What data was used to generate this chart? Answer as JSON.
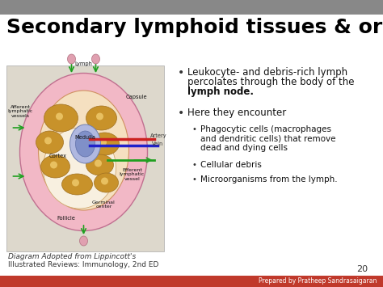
{
  "title": "Secondary lymphoid tissues & organs",
  "title_fontsize": 18,
  "title_color": "#000000",
  "slide_bg": "#ffffff",
  "gray_bar_color": "#888888",
  "red_bar_color": "#c0392b",
  "red_bar_text": "Prepared by Pratheep Sandrasaigaran",
  "page_number": "20",
  "caption_line1": "Diagram Adopted from Lippincott's",
  "caption_line2": "Illustrated Reviews: Immunology, 2nd ED",
  "bullet1_line1": "Leukocyte- and debris-rich lymph",
  "bullet1_line2": "percolates through the body of the",
  "bullet1_bold": "lymph node.",
  "bullet2": "Here they encounter",
  "sub_bullet1": "Phagocytic cells (macrophages\nand dendritic cells) that remove\ndead and dying cells",
  "sub_bullet2": "Cellular debris",
  "sub_bullet3": "Microorganisms from the lymph.",
  "text_fontsize": 8.5,
  "small_fontsize": 7.5,
  "caption_fontsize": 6.5,
  "footer_fontsize": 5.5,
  "page_fontsize": 8
}
